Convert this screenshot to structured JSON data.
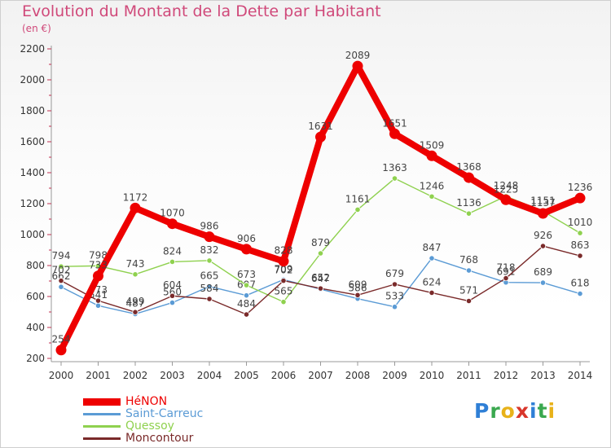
{
  "chart_data": {
    "type": "line",
    "title": "Evolution du Montant de la Dette par Habitant",
    "subtitle": "(en €)",
    "x": [
      "2000",
      "2001",
      "2002",
      "2003",
      "2004",
      "2005",
      "2006",
      "2007",
      "2008",
      "2009",
      "2010",
      "2011",
      "2012",
      "2013",
      "2014"
    ],
    "ylim": [
      200,
      2200
    ],
    "yticks": [
      200,
      400,
      600,
      800,
      1000,
      1200,
      1400,
      1600,
      1800,
      2000,
      2200
    ],
    "grid": false,
    "legend_position": "bottom-left",
    "series": [
      {
        "name": "HéNON",
        "color": "#ee0000",
        "highlight": true,
        "values": [
          254,
          733,
          1172,
          1070,
          986,
          906,
          828,
          1631,
          2089,
          1651,
          1509,
          1368,
          1225,
          1137,
          1236
        ]
      },
      {
        "name": "Saint-Carreuc",
        "color": "#5b9bd5",
        "highlight": false,
        "values": [
          662,
          541,
          487,
          560,
          665,
          607,
          709,
          647,
          586,
          533,
          847,
          768,
          691,
          689,
          618
        ]
      },
      {
        "name": "Quessoy",
        "color": "#8fd14f",
        "highlight": false,
        "values": [
          794,
          798,
          743,
          824,
          832,
          673,
          565,
          879,
          1161,
          1363,
          1246,
          1136,
          1248,
          1151,
          1010
        ]
      },
      {
        "name": "Moncontour",
        "color": "#7a2a2a",
        "highlight": false,
        "values": [
          702,
          573,
          499,
          604,
          584,
          484,
          702,
          652,
          609,
          679,
          624,
          571,
          718,
          926,
          863
        ]
      }
    ]
  },
  "logo": {
    "letters": [
      {
        "ch": "P",
        "color": "#2f7fd6"
      },
      {
        "ch": "r",
        "color": "#3aa84f"
      },
      {
        "ch": "o",
        "color": "#e8b21a"
      },
      {
        "ch": "x",
        "color": "#d8362b"
      },
      {
        "ch": "i",
        "color": "#2f7fd6"
      },
      {
        "ch": "t",
        "color": "#3aa84f"
      },
      {
        "ch": "i",
        "color": "#e8b21a"
      }
    ]
  }
}
